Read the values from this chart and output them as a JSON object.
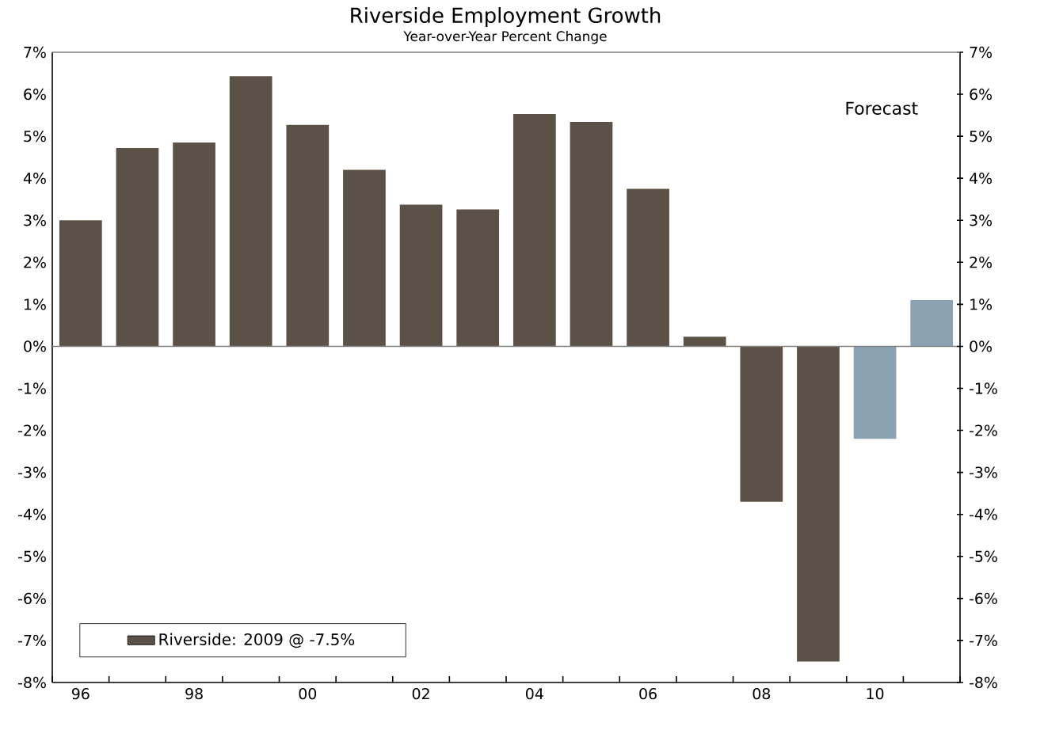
{
  "chart_data": {
    "type": "bar",
    "title": "Riverside Employment Growth",
    "subtitle": "Year-over-Year Percent Change",
    "categories": [
      "96",
      null,
      "98",
      null,
      "00",
      null,
      "02",
      null,
      "04",
      null,
      "06",
      null,
      "08",
      null,
      "10",
      null
    ],
    "series": [
      {
        "name": "Riverside:  2009 @ -7.5%",
        "color": "#5c5146",
        "colors": [
          "#5c5146",
          "#5c5146",
          "#5c5146",
          "#5c5146",
          "#5c5146",
          "#5c5146",
          "#5c5146",
          "#5c5146",
          "#5c5146",
          "#5c5146",
          "#5c5146",
          "#5c5146",
          "#5c5146",
          "#5c5146",
          "#8aa2b1",
          "#8aa2b1"
        ],
        "values": [
          3.0,
          4.72,
          4.85,
          6.43,
          5.27,
          4.2,
          3.37,
          3.26,
          5.53,
          5.34,
          3.75,
          0.23,
          -3.7,
          -7.5,
          -2.2,
          1.1
        ]
      }
    ],
    "ylim": [
      -8,
      7
    ],
    "yticks": [
      {
        "value": -8,
        "label": "-8%"
      },
      {
        "value": -7,
        "label": "-7%"
      },
      {
        "value": -6,
        "label": "-6%"
      },
      {
        "value": -5,
        "label": "-5%"
      },
      {
        "value": -4,
        "label": "-4%"
      },
      {
        "value": -3,
        "label": "-3%"
      },
      {
        "value": -2,
        "label": "-2%"
      },
      {
        "value": -1,
        "label": "-1%"
      },
      {
        "value": 0,
        "label": "0%"
      },
      {
        "value": 1,
        "label": "1%"
      },
      {
        "value": 2,
        "label": "2%"
      },
      {
        "value": 3,
        "label": "3%"
      },
      {
        "value": 4,
        "label": "4%"
      },
      {
        "value": 5,
        "label": "5%"
      },
      {
        "value": 6,
        "label": "6%"
      },
      {
        "value": 7,
        "label": "7%"
      }
    ],
    "y2lim": [
      -8,
      7
    ],
    "y2ticks": [
      {
        "value": -8,
        "label": "-8%"
      },
      {
        "value": -7,
        "label": "-7%"
      },
      {
        "value": -6,
        "label": "-6%"
      },
      {
        "value": -5,
        "label": "-5%"
      },
      {
        "value": -4,
        "label": "-4%"
      },
      {
        "value": -3,
        "label": "-3%"
      },
      {
        "value": -2,
        "label": "-2%"
      },
      {
        "value": -1,
        "label": "-1%"
      },
      {
        "value": 0,
        "label": "0%"
      },
      {
        "value": 1,
        "label": "1%"
      },
      {
        "value": 2,
        "label": "2%"
      },
      {
        "value": 3,
        "label": "3%"
      },
      {
        "value": 4,
        "label": "4%"
      },
      {
        "value": 5,
        "label": "5%"
      },
      {
        "value": 6,
        "label": "6%"
      },
      {
        "value": 7,
        "label": "7%"
      }
    ],
    "annotations": [
      "Forecast"
    ],
    "legend": "bottom left"
  }
}
